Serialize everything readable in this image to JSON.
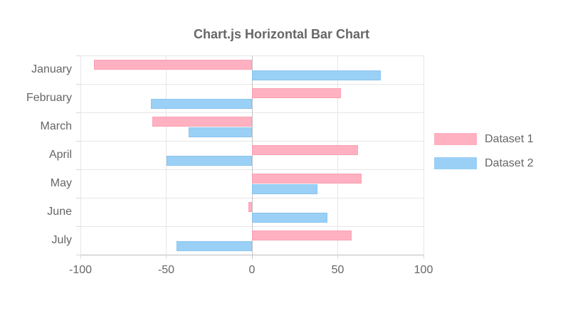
{
  "chart_data": {
    "type": "bar",
    "orientation": "horizontal",
    "title": "Chart.js Horizontal Bar Chart",
    "categories": [
      "January",
      "February",
      "March",
      "April",
      "May",
      "June",
      "July"
    ],
    "series": [
      {
        "name": "Dataset 1",
        "values": [
          -92,
          52,
          -58,
          62,
          64,
          -2,
          58
        ],
        "fill": "#ffb1c1",
        "border": "#fba0b4"
      },
      {
        "name": "Dataset 2",
        "values": [
          75,
          -59,
          -37,
          -50,
          38,
          44,
          -44
        ],
        "fill": "#9ad0f5",
        "border": "#8ac4ef"
      }
    ],
    "xticks": [
      -100,
      -50,
      0,
      50,
      100
    ],
    "xlim": [
      -100,
      100
    ],
    "grid": true,
    "legend_position": "right",
    "colors": {
      "grid_line": "#e6e6e6",
      "zero_line": "#c2c2c2",
      "axis_line": "#bdbdbd",
      "tick_mark": "#d9d9d9",
      "axis_text": "#666666",
      "title_text": "#666666",
      "background": "#ffffff"
    }
  }
}
